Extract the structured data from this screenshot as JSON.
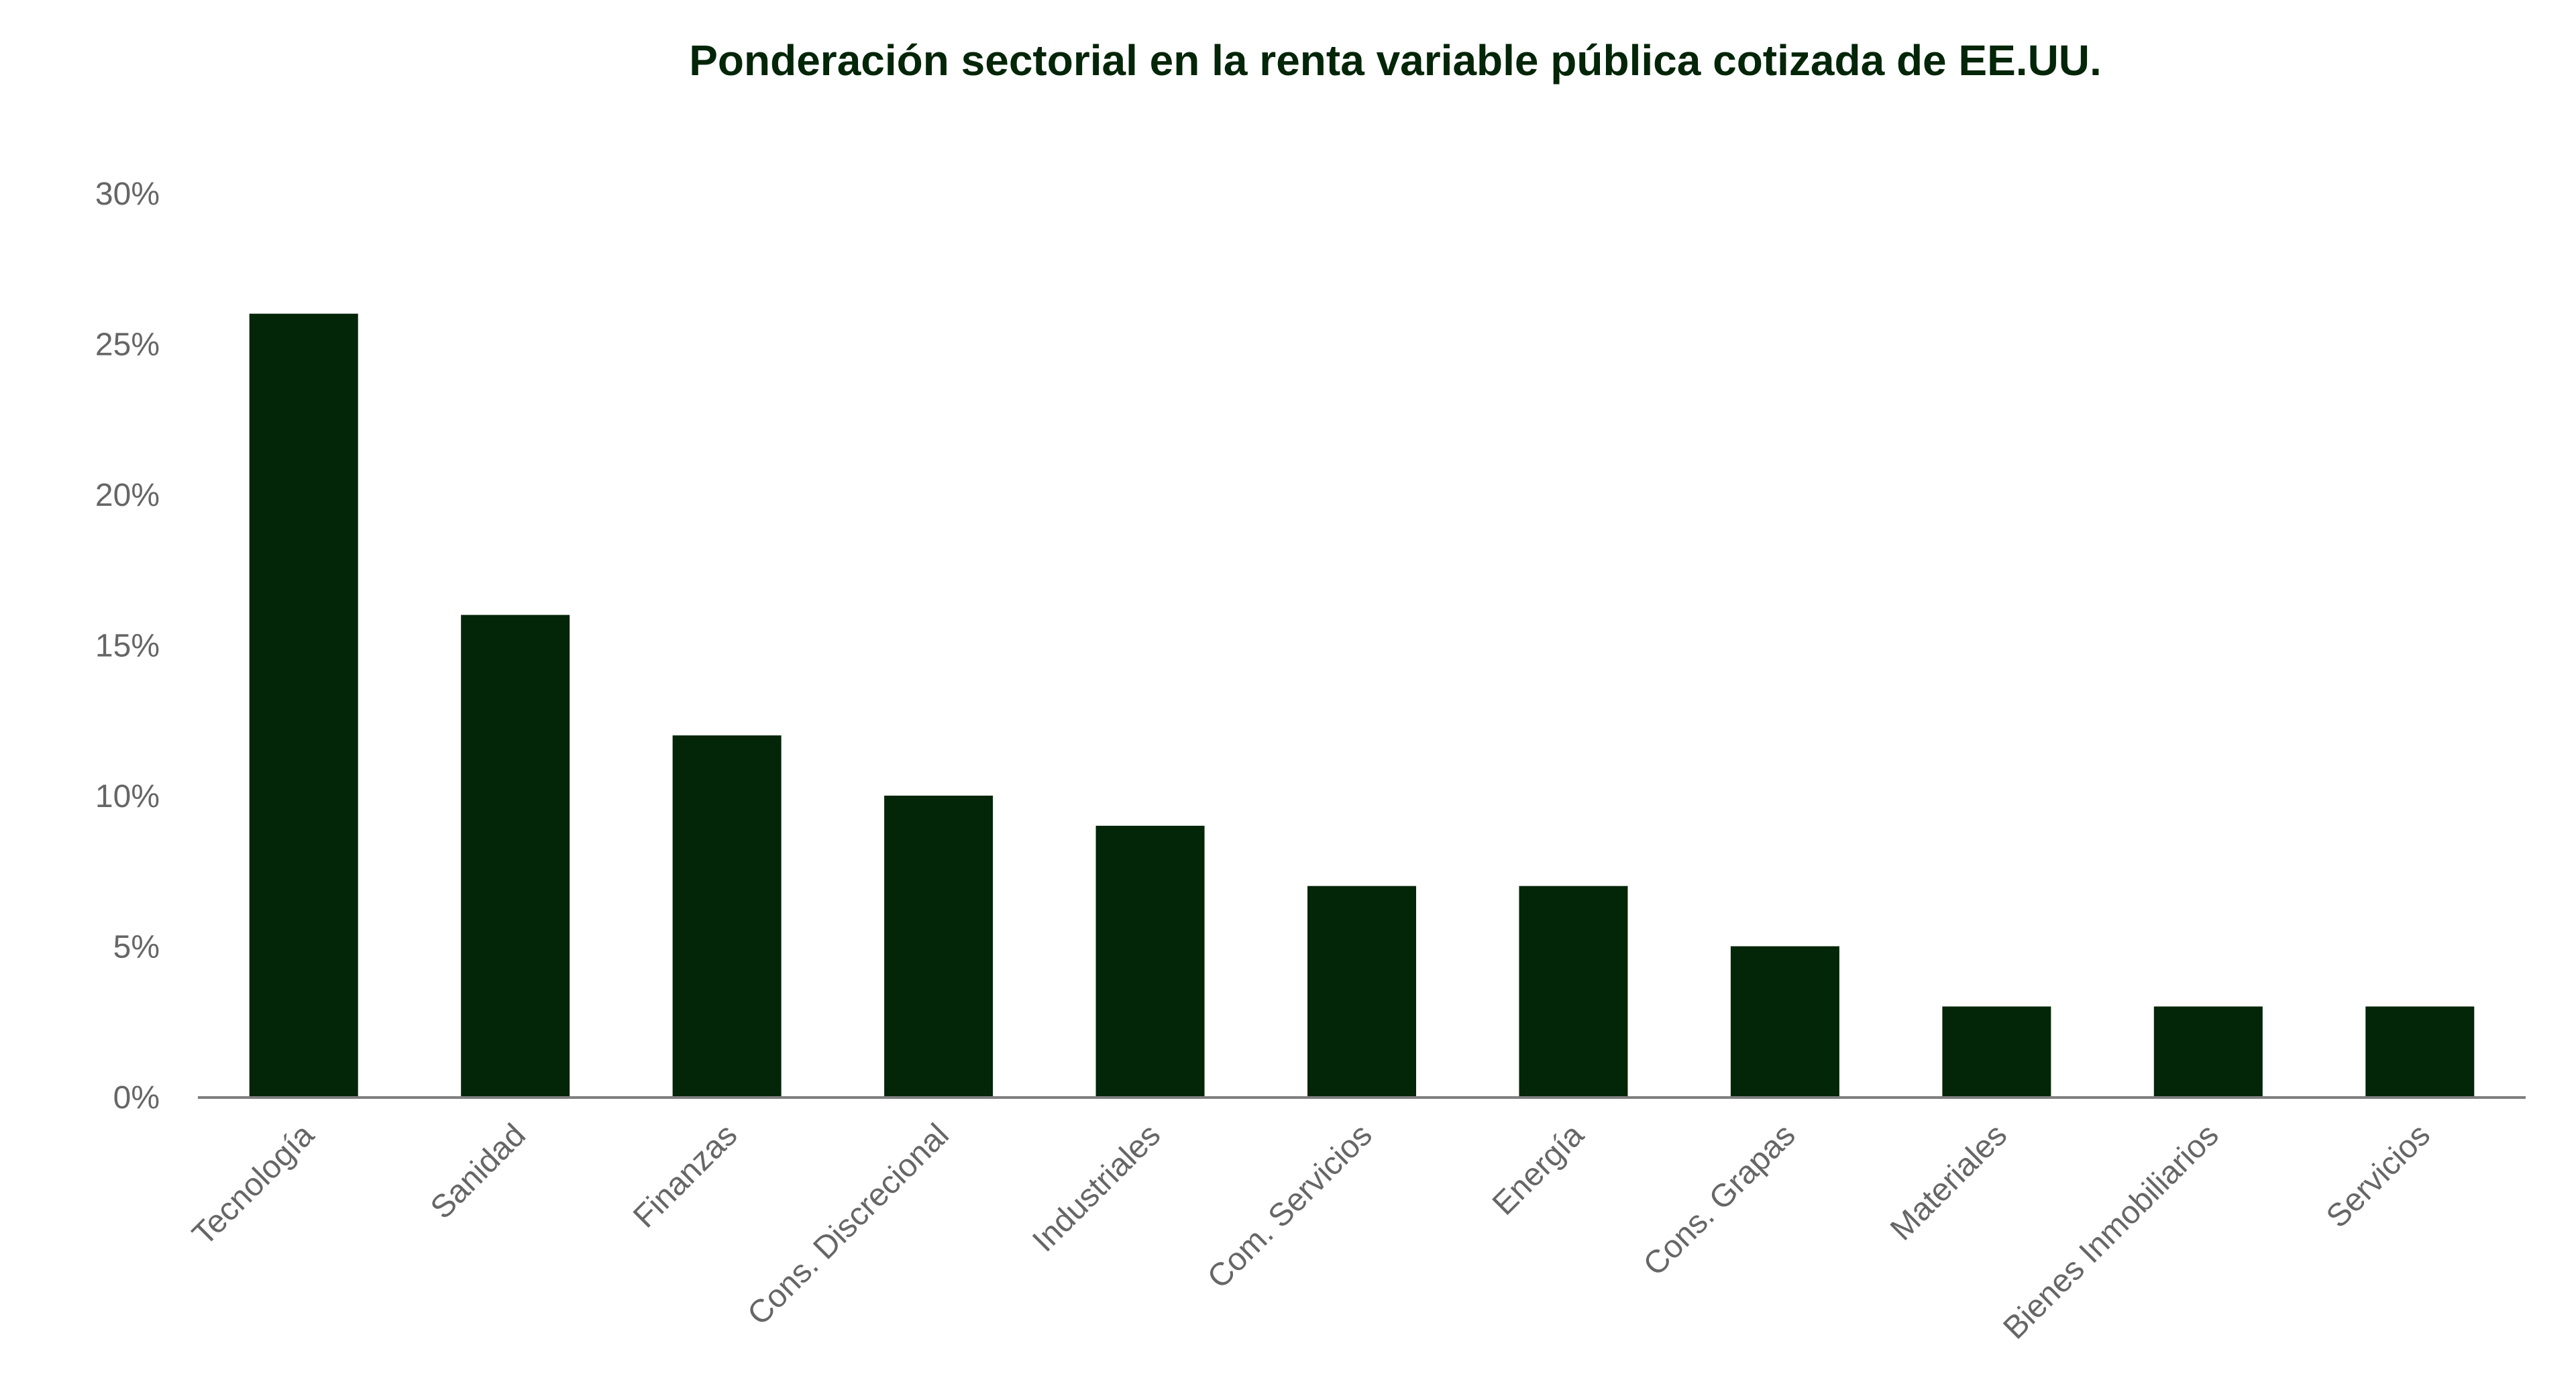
{
  "colors": {
    "bar": "#032508",
    "title": "#032508",
    "axis_text": "#666666",
    "axis_line": "#7f7f7f",
    "background": "#ffffff"
  },
  "chart_data": {
    "type": "bar",
    "title": "Ponderación sectorial en la renta variable pública cotizada de EE.UU.",
    "xlabel": "",
    "ylabel": "",
    "categories": [
      "Tecnología",
      "Sanidad",
      "Finanzas",
      "Cons. Discrecional",
      "Industriales",
      "Com. Servicios",
      "Energía",
      "Cons. Grapas",
      "Materiales",
      "Bienes Inmobiliarios",
      "Servicios"
    ],
    "values": [
      26,
      16,
      12,
      10,
      9,
      7,
      7,
      5,
      3,
      3,
      3
    ],
    "ylim": [
      0,
      30
    ],
    "yticks": [
      0,
      5,
      10,
      15,
      20,
      25,
      30
    ],
    "ytick_labels": [
      "0%",
      "5%",
      "10%",
      "15%",
      "20%",
      "25%",
      "30%"
    ],
    "grid": false,
    "legend": "none"
  }
}
